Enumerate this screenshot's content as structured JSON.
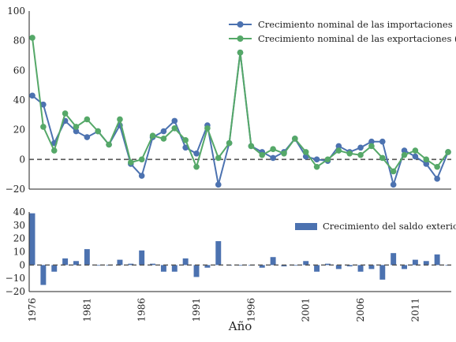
{
  "chart_data": [
    {
      "type": "line",
      "x": [
        1976,
        1977,
        1978,
        1979,
        1980,
        1981,
        1982,
        1983,
        1984,
        1985,
        1986,
        1987,
        1988,
        1989,
        1990,
        1991,
        1992,
        1993,
        1994,
        1995,
        1996,
        1997,
        1998,
        1999,
        2000,
        2001,
        2002,
        2003,
        2004,
        2005,
        2006,
        2007,
        2008,
        2009,
        2010,
        2011,
        2012,
        2013,
        2014
      ],
      "series": [
        {
          "name": "Crecimiento nominal de las importaciones (%)",
          "color": "#4c72b0",
          "values": [
            43,
            37,
            11,
            26,
            19,
            15,
            19,
            10,
            23,
            -3,
            -11,
            15,
            19,
            26,
            8,
            4,
            23,
            -17,
            11,
            72,
            9,
            5,
            1,
            5,
            14,
            2,
            0,
            -1,
            9,
            5,
            8,
            12,
            12,
            -17,
            6,
            2,
            -3,
            -13,
            5
          ]
        },
        {
          "name": "Crecimiento nominal de las exportaciones (%)",
          "color": "#55a868",
          "values": [
            82,
            22,
            6,
            31,
            22,
            27,
            19,
            10,
            27,
            -2,
            0,
            16,
            14,
            21,
            13,
            -5,
            21,
            1,
            11,
            72,
            9,
            3,
            7,
            4,
            14,
            5,
            -5,
            0,
            6,
            4,
            3,
            9,
            1,
            -8,
            3,
            6,
            0,
            -5,
            5
          ]
        }
      ],
      "ylim": [
        -20,
        100
      ],
      "yticks": [
        "100",
        "80",
        "60",
        "40",
        "20",
        "0",
        "−20"
      ],
      "legend_position": "top-right",
      "zero_line": true
    },
    {
      "type": "bar",
      "x": [
        1976,
        1977,
        1978,
        1979,
        1980,
        1981,
        1982,
        1983,
        1984,
        1985,
        1986,
        1987,
        1988,
        1989,
        1990,
        1991,
        1992,
        1993,
        1994,
        1995,
        1996,
        1997,
        1998,
        1999,
        2000,
        2001,
        2002,
        2003,
        2004,
        2005,
        2006,
        2007,
        2008,
        2009,
        2010,
        2011,
        2012,
        2013,
        2014
      ],
      "series": [
        {
          "name": "Crecimiento del saldo exterior",
          "color": "#4c72b0",
          "values": [
            39,
            -15,
            -5,
            5,
            3,
            12,
            0,
            0,
            4,
            1,
            11,
            1,
            -5,
            -5,
            5,
            -9,
            -2,
            18,
            0,
            0,
            0,
            -2,
            6,
            -1,
            0,
            3,
            -5,
            1,
            -3,
            -1,
            -5,
            -3,
            -11,
            9,
            -3,
            4,
            3,
            8,
            0
          ]
        }
      ],
      "ylim": [
        -20,
        40
      ],
      "yticks": [
        "40",
        "30",
        "20",
        "10",
        "0",
        "−10",
        "−20"
      ],
      "legend_position": "top-right",
      "xlabel": "Año",
      "xticks": [
        "1976",
        "1981",
        "1986",
        "1991",
        "1996",
        "2001",
        "2006",
        "2011"
      ]
    }
  ]
}
